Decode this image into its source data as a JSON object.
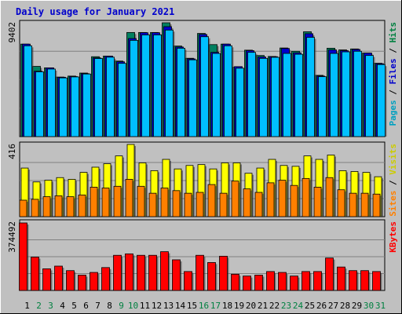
{
  "chart_data": {
    "type": "bar",
    "title": "Daily usage for January 2021",
    "categories": [
      "1",
      "2",
      "3",
      "4",
      "5",
      "6",
      "7",
      "8",
      "9",
      "10",
      "11",
      "12",
      "13",
      "14",
      "15",
      "16",
      "17",
      "18",
      "19",
      "20",
      "21",
      "22",
      "23",
      "24",
      "25",
      "26",
      "27",
      "28",
      "29",
      "30",
      "31"
    ],
    "weekend_color": "#008040",
    "weekday_color": "#000000",
    "weekend_days": [
      "2",
      "3",
      "9",
      "10",
      "16",
      "17",
      "23",
      "24",
      "30",
      "31"
    ],
    "panels": [
      {
        "name": "hits-files-pages",
        "ymax_label": "9402",
        "ylim": [
          0,
          9402
        ],
        "legend": [
          {
            "label": "Pages",
            "color": "#00a0c0"
          },
          {
            "label": " / ",
            "color": "#000000"
          },
          {
            "label": "Files",
            "color": "#0000cc"
          },
          {
            "label": " / ",
            "color": "#000000"
          },
          {
            "label": "Hits",
            "color": "#008040"
          }
        ],
        "series": [
          {
            "name": "Hits",
            "color": "#008060",
            "values": [
              7640,
              5800,
              5680,
              4920,
              5000,
              5250,
              6600,
              6650,
              6240,
              8600,
              8600,
              8600,
              9402,
              7480,
              6470,
              8520,
              7600,
              7640,
              5730,
              7140,
              6700,
              6620,
              7320,
              7050,
              8660,
              5060,
              7300,
              7160,
              7240,
              6900,
              6060
            ]
          },
          {
            "name": "Files",
            "color": "#0000cc",
            "values": [
              7640,
              5400,
              5680,
              4900,
              4960,
              5200,
              6500,
              6650,
              6180,
              8100,
              8580,
              8580,
              9080,
              7400,
              6420,
              8440,
              6960,
              7640,
              5780,
              7100,
              6580,
              6600,
              7280,
              6920,
              8500,
              5000,
              7160,
              7100,
              7200,
              6900,
              6020
            ]
          },
          {
            "name": "Pages",
            "color": "#00bfff",
            "values": [
              7500,
              5350,
              5580,
              4850,
              4930,
              5170,
              6450,
              6560,
              6050,
              7950,
              8400,
              8400,
              8800,
              7300,
              6340,
              8250,
              6870,
              7500,
              5650,
              6960,
              6460,
              6550,
              6870,
              6800,
              8200,
              4950,
              6870,
              7000,
              7050,
              6700,
              5950
            ]
          }
        ]
      },
      {
        "name": "visits-sites",
        "ymax_label": "416",
        "ylim": [
          0,
          416
        ],
        "legend": [
          {
            "label": "Sites",
            "color": "#ff8000"
          },
          {
            "label": " / ",
            "color": "#000000"
          },
          {
            "label": "Visits",
            "color": "#cccc00"
          }
        ],
        "series": [
          {
            "name": "Visits",
            "color": "#ffff00",
            "values": [
              280,
              200,
              210,
              225,
              215,
              255,
              285,
              305,
              350,
              416,
              310,
              265,
              330,
              275,
              295,
              300,
              275,
              310,
              310,
              250,
              280,
              330,
              295,
              290,
              350,
              330,
              355,
              265,
              260,
              255,
              230
            ]
          },
          {
            "name": "Sites",
            "color": "#ff8000",
            "values": [
              95,
              100,
              115,
              120,
              115,
              125,
              170,
              165,
              175,
              215,
              175,
              135,
              165,
              150,
              135,
              140,
              185,
              135,
              205,
              160,
              140,
              195,
              210,
              180,
              220,
              170,
              225,
              155,
              135,
              135,
              130
            ]
          }
        ]
      },
      {
        "name": "kbytes",
        "ymax_label": "374492",
        "ylim": [
          0,
          374492
        ],
        "legend": [
          {
            "label": "KBytes",
            "color": "#ff0000"
          }
        ],
        "series": [
          {
            "name": "KBytes",
            "color": "#ff0000",
            "values": [
              374492,
              185000,
              120000,
              135000,
              110000,
              85000,
              100000,
              127000,
              195000,
              203000,
              195000,
              195000,
              215000,
              170000,
              105000,
              195000,
              155000,
              190000,
              90000,
              80000,
              85000,
              105000,
              100000,
              80000,
              105000,
              105000,
              180000,
              130000,
              110000,
              110000,
              105000
            ]
          }
        ]
      }
    ]
  }
}
